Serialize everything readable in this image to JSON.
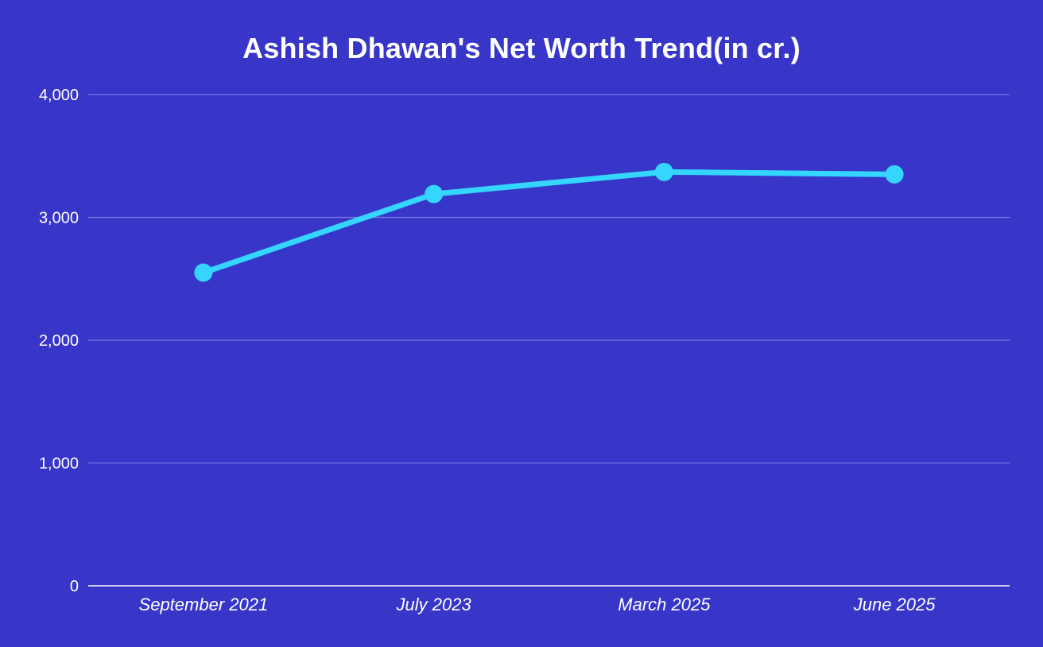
{
  "chart_data": {
    "type": "line",
    "title": "Ashish Dhawan's Net Worth Trend(in cr.)",
    "xlabel": "",
    "ylabel": "",
    "categories": [
      "September 2021",
      "July 2023",
      "March 2025",
      "June 2025"
    ],
    "series": [
      {
        "values": [
          2550,
          3190,
          3370,
          3350
        ]
      }
    ],
    "ylim": [
      0,
      4000
    ],
    "yticks": [
      0,
      1000,
      2000,
      3000,
      4000
    ],
    "ytick_labels": [
      "0",
      "1,000",
      "2,000",
      "3,000",
      "4,000"
    ],
    "grid": true,
    "legend": "none"
  },
  "colors": {
    "background": "#3836c9",
    "line": "#34d5ff",
    "grid": "#7a78e0",
    "axis": "#ffffff",
    "text": "#ffffff"
  }
}
